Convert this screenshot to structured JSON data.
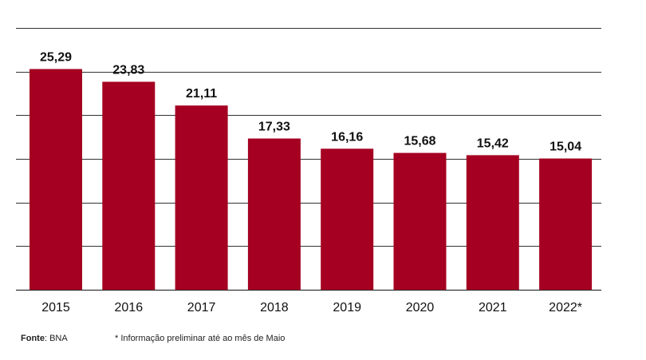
{
  "chart_data": {
    "type": "bar",
    "categories": [
      "2015",
      "2016",
      "2017",
      "2018",
      "2019",
      "2020",
      "2021",
      "2022*"
    ],
    "values": [
      25.29,
      23.83,
      21.11,
      17.33,
      16.16,
      15.68,
      15.42,
      15.04
    ],
    "data_labels": [
      "25,29",
      "23,83",
      "21,11",
      "17,33",
      "16,16",
      "15,68",
      "15,42",
      "15,04"
    ],
    "ylim": [
      0,
      30
    ],
    "grid": true,
    "colors": {
      "bar": "#a50021",
      "grid": "#333333",
      "text": "#111111"
    }
  },
  "footer": {
    "source_label": "Fonte",
    "source_value": ": BNA",
    "note": "* Informação preliminar até ao mês de Maio"
  }
}
